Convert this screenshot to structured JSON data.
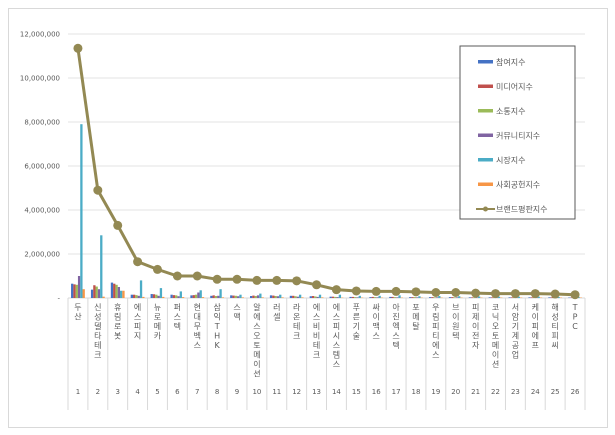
{
  "chart_data": {
    "type": "bar",
    "title": "",
    "xlabel": "",
    "ylabel": "",
    "ylim": [
      0,
      12000000
    ],
    "yticks": [
      "-",
      "2,000,000",
      "4,000,000",
      "6,000,000",
      "8,000,000",
      "10,000,000",
      "12,000,000"
    ],
    "grid": true,
    "legend_position": "right",
    "categories": [
      "두산",
      "신성델타테크",
      "휴림로봇",
      "에스피지",
      "뉴로메카",
      "퍼스텍",
      "현대무벡스",
      "삼익THK",
      "스맥",
      "알에스오토메이션",
      "러셀",
      "라온테크",
      "에스비비테크",
      "에스피시스템스",
      "푸른기술",
      "싸이맥스",
      "아진엑스텍",
      "포메탈",
      "우림피티에스",
      "브이원텍",
      "피제이전자",
      "코닉오토메이션",
      "서암기계공업",
      "케이피에프",
      "해성티피씨",
      "TPC"
    ],
    "indices": [
      "1",
      "2",
      "3",
      "4",
      "5",
      "6",
      "7",
      "8",
      "9",
      "10",
      "11",
      "12",
      "13",
      "14",
      "15",
      "16",
      "17",
      "18",
      "19",
      "20",
      "21",
      "22",
      "23",
      "24",
      "25",
      "26"
    ],
    "series": [
      {
        "name": "참여지수",
        "type": "bar",
        "color": "#4472c4",
        "values": [
          650000,
          380000,
          700000,
          150000,
          180000,
          150000,
          120000,
          100000,
          120000,
          90000,
          120000,
          100000,
          80000,
          60000,
          50000,
          40000,
          50000,
          40000,
          40000,
          40000,
          30000,
          30000,
          30000,
          30000,
          30000,
          20000
        ]
      },
      {
        "name": "미디어지수",
        "type": "bar",
        "color": "#c0504d",
        "values": [
          620000,
          580000,
          650000,
          150000,
          170000,
          130000,
          130000,
          120000,
          110000,
          110000,
          110000,
          100000,
          90000,
          60000,
          50000,
          50000,
          50000,
          40000,
          40000,
          40000,
          30000,
          30000,
          30000,
          30000,
          30000,
          20000
        ]
      },
      {
        "name": "소통지수",
        "type": "bar",
        "color": "#9bbb59",
        "values": [
          600000,
          520000,
          600000,
          130000,
          150000,
          120000,
          150000,
          90000,
          100000,
          90000,
          90000,
          80000,
          70000,
          50000,
          40000,
          40000,
          40000,
          40000,
          30000,
          30000,
          30000,
          30000,
          30000,
          30000,
          20000,
          20000
        ]
      },
      {
        "name": "커뮤니티지수",
        "type": "bar",
        "color": "#8064a2",
        "values": [
          1000000,
          400000,
          500000,
          100000,
          100000,
          80000,
          250000,
          100000,
          80000,
          120000,
          80000,
          60000,
          50000,
          40000,
          30000,
          30000,
          30000,
          30000,
          30000,
          30000,
          20000,
          20000,
          20000,
          20000,
          20000,
          20000
        ]
      },
      {
        "name": "시장지수",
        "type": "bar",
        "color": "#4bacc6",
        "values": [
          7900000,
          2850000,
          330000,
          800000,
          450000,
          300000,
          350000,
          400000,
          150000,
          200000,
          150000,
          150000,
          150000,
          150000,
          100000,
          100000,
          120000,
          80000,
          90000,
          80000,
          70000,
          60000,
          60000,
          60000,
          50000,
          50000
        ]
      },
      {
        "name": "사회공헌지수",
        "type": "bar",
        "color": "#f79646",
        "values": [
          400000,
          60000,
          330000,
          50000,
          50000,
          40000,
          40000,
          30000,
          30000,
          30000,
          30000,
          30000,
          30000,
          20000,
          20000,
          20000,
          20000,
          20000,
          20000,
          20000,
          20000,
          20000,
          20000,
          20000,
          20000,
          20000
        ]
      },
      {
        "name": "브랜드평판지수",
        "type": "line",
        "color": "#938953",
        "values": [
          11350000,
          4900000,
          3300000,
          1650000,
          1300000,
          1000000,
          1000000,
          850000,
          850000,
          800000,
          800000,
          780000,
          600000,
          380000,
          320000,
          300000,
          300000,
          280000,
          250000,
          250000,
          220000,
          200000,
          200000,
          200000,
          180000,
          150000
        ]
      }
    ]
  }
}
